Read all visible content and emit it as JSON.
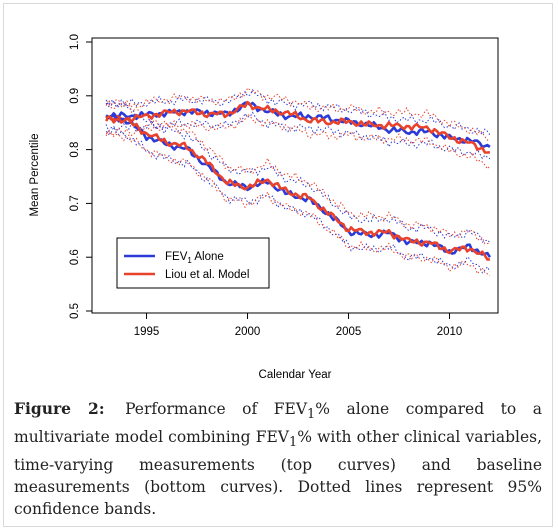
{
  "chart_data": {
    "type": "line",
    "xlabel": "Calendar Year",
    "ylabel": "Mean Percentile",
    "xlim": [
      1992.3,
      2012.4
    ],
    "ylim": [
      0.5,
      1.0
    ],
    "x_ticks": [
      "1995",
      "2000",
      "2005",
      "2010"
    ],
    "y_ticks": [
      "0.5",
      "0.6",
      "0.7",
      "0.8",
      "0.9",
      "1.0"
    ],
    "legend": {
      "placement": "bottom-left",
      "entries": [
        {
          "label_main": "FEV",
          "label_sub": "1",
          "label_rest": " Alone",
          "color": "#2b3bd8"
        },
        {
          "label_main": "Liou et al. Model",
          "label_sub": "",
          "label_rest": "",
          "color": "#e8412c"
        }
      ]
    },
    "band_style": "dotted",
    "series": [
      {
        "name": "FEV1 Alone",
        "group": "time-varying",
        "color": "#2b3bd8",
        "x": [
          1993,
          1994,
          1995,
          1996,
          1997,
          1998,
          1999,
          2000,
          2001,
          2002,
          2003,
          2004,
          2005,
          2006,
          2007,
          2008,
          2009,
          2010,
          2011,
          2012
        ],
        "y": [
          0.865,
          0.862,
          0.865,
          0.868,
          0.871,
          0.869,
          0.866,
          0.886,
          0.871,
          0.862,
          0.862,
          0.858,
          0.852,
          0.846,
          0.837,
          0.833,
          0.833,
          0.822,
          0.817,
          0.805
        ],
        "band": 0.022
      },
      {
        "name": "Liou et al. Model",
        "group": "time-varying",
        "color": "#e8412c",
        "x": [
          1993,
          1994,
          1995,
          1996,
          1997,
          1998,
          1999,
          2000,
          2001,
          2002,
          2003,
          2004,
          2005,
          2006,
          2007,
          2008,
          2009,
          2010,
          2011,
          2012
        ],
        "y": [
          0.857,
          0.857,
          0.862,
          0.869,
          0.872,
          0.866,
          0.866,
          0.884,
          0.874,
          0.868,
          0.855,
          0.851,
          0.852,
          0.846,
          0.845,
          0.843,
          0.84,
          0.823,
          0.812,
          0.795
        ],
        "band": 0.025
      },
      {
        "name": "FEV1 Alone",
        "group": "baseline",
        "color": "#2b3bd8",
        "x": [
          1993,
          1994,
          1995,
          1996,
          1997,
          1998,
          1999,
          2000,
          2001,
          2002,
          2003,
          2004,
          2005,
          2006,
          2007,
          2008,
          2009,
          2010,
          2011,
          2012
        ],
        "y": [
          0.861,
          0.855,
          0.825,
          0.81,
          0.801,
          0.77,
          0.738,
          0.73,
          0.74,
          0.717,
          0.708,
          0.681,
          0.648,
          0.641,
          0.645,
          0.627,
          0.627,
          0.61,
          0.62,
          0.6
        ],
        "band": 0.027
      },
      {
        "name": "Liou et al. Model",
        "group": "baseline",
        "color": "#e8412c",
        "x": [
          1993,
          1994,
          1995,
          1996,
          1997,
          1998,
          1999,
          2000,
          2001,
          2002,
          2003,
          2004,
          2005,
          2006,
          2007,
          2008,
          2009,
          2010,
          2011,
          2012
        ],
        "y": [
          0.857,
          0.855,
          0.83,
          0.814,
          0.805,
          0.776,
          0.738,
          0.73,
          0.744,
          0.721,
          0.711,
          0.682,
          0.652,
          0.646,
          0.646,
          0.63,
          0.627,
          0.612,
          0.617,
          0.596
        ],
        "band": 0.03
      }
    ]
  },
  "caption": {
    "label": "Figure 2:",
    "seg1": " Performance of FEV",
    "sub1": "1",
    "seg2": "% alone compared to a multivariate model combining FEV",
    "sub2": "1",
    "seg3": "% with other clinical variables, time-varying measurements (top curves) and baseline measurements (bottom curves). Dotted lines represent 95% confidence bands."
  }
}
